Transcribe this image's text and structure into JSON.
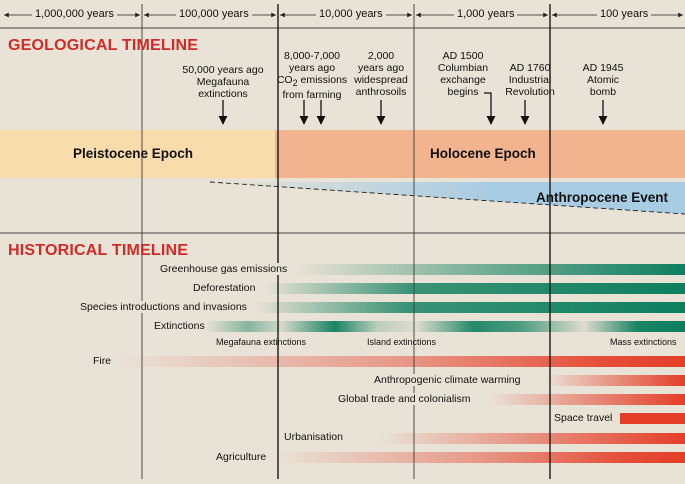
{
  "scale": {
    "labels": [
      "1,000,000 years",
      "100,000 years",
      "10,000 years",
      "1,000 years",
      "100 years"
    ]
  },
  "geological": {
    "title": "GEOLOGICAL TIMELINE",
    "events": [
      {
        "line1": "50,000 years ago",
        "line2": "Megafauna",
        "line3": "extinctions"
      },
      {
        "line1": "8,000-7,000",
        "line2": "years ago",
        "line3_prefix": "CO",
        "line3_sub": "2",
        "line3_suffix": " emissions",
        "line4": "from farming"
      },
      {
        "line1": "2,000",
        "line2": "years ago",
        "line3": "widespread",
        "line4": "anthrosoils"
      },
      {
        "line1": "AD 1500",
        "line2": "Columbian",
        "line3": "exchange",
        "line4": "begins"
      },
      {
        "line1": "AD 1760",
        "line2": "Industrial",
        "line3": "Revolution"
      },
      {
        "line1": "AD 1945",
        "line2": "Atomic",
        "line3": "bomb"
      }
    ],
    "epochs": [
      {
        "name": "Pleistocene Epoch",
        "color": "#f8dcac"
      },
      {
        "name": "Holocene Epoch",
        "color": "#f2b48e"
      }
    ],
    "event_band": {
      "name": "Anthropocene Event",
      "color": "#a8cce2"
    }
  },
  "historical": {
    "title": "HISTORICAL TIMELINE",
    "green_color": "#0e7f5e",
    "red_color": "#e43e28",
    "rows": [
      {
        "label": "Greenhouse gas emissions"
      },
      {
        "label": "Deforestation"
      },
      {
        "label": "Species introductions and invasions"
      },
      {
        "label": "Extinctions"
      },
      {
        "label": "Fire"
      },
      {
        "label": "Anthropogenic climate warming"
      },
      {
        "label": "Global trade and colonialism"
      },
      {
        "label": "Space travel"
      },
      {
        "label": "Urbanisation"
      },
      {
        "label": "Agriculture"
      }
    ],
    "extinction_phases": [
      "Megafauna extinctions",
      "Island extinctions",
      "Mass extinctions"
    ]
  }
}
